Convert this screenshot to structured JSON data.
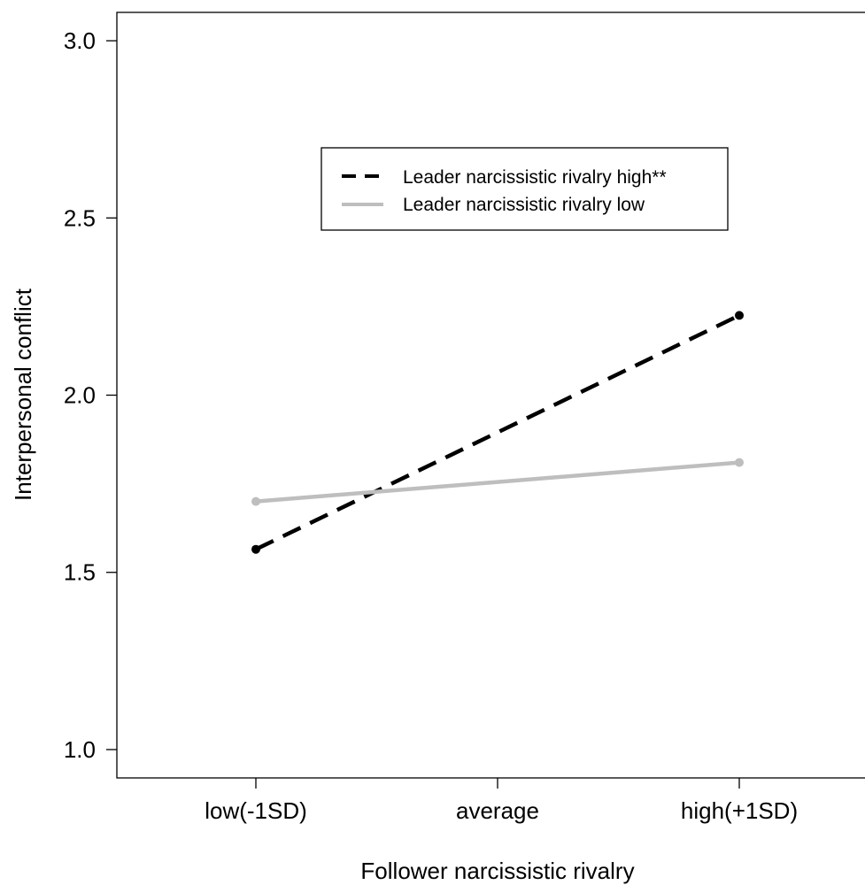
{
  "chart_data": {
    "type": "line",
    "title": "",
    "xlabel": "Follower narcissistic rivalry",
    "ylabel": "Interpersonal conflict",
    "categories": [
      "low(-1SD)",
      "average",
      "high(+1SD)"
    ],
    "ylim": [
      0.92,
      3.08
    ],
    "yticks": [
      "1.0",
      "1.5",
      "2.0",
      "2.5",
      "3.0"
    ],
    "grid": false,
    "legend_position": "top-center",
    "series": [
      {
        "name": "Leader narcissistic rivalry high**",
        "x": [
          "low(-1SD)",
          "high(+1SD)"
        ],
        "values": [
          1.565,
          2.225
        ],
        "color": "#000000",
        "line_style": "dashed",
        "markers": true
      },
      {
        "name": "Leader narcissistic rivalry low",
        "x": [
          "low(-1SD)",
          "high(+1SD)"
        ],
        "values": [
          1.7,
          1.81
        ],
        "color": "#bebebe",
        "line_style": "solid",
        "markers": true
      }
    ]
  }
}
